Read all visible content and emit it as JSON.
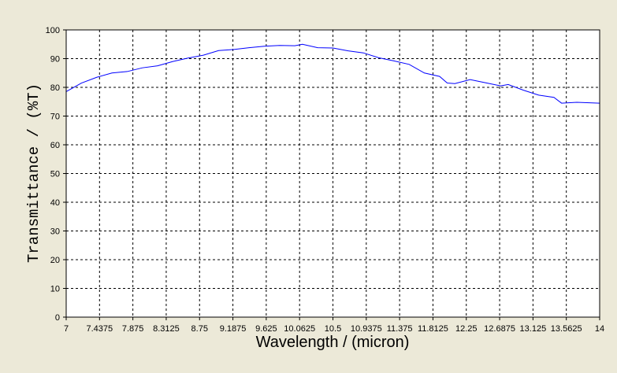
{
  "chart_data": {
    "type": "line",
    "x_label": "Wavelength / (micron)",
    "y_label": "Transmittance / (%T)",
    "x": [
      7,
      7.2,
      7.4,
      7.6,
      7.8,
      8.0,
      8.2,
      8.4,
      8.6,
      8.8,
      9.0,
      9.2,
      9.4,
      9.6,
      9.8,
      10.0,
      10.1,
      10.3,
      10.5,
      10.7,
      10.9,
      11.1,
      11.3,
      11.5,
      11.7,
      11.9,
      12.0,
      12.1,
      12.3,
      12.5,
      12.7,
      12.8,
      13.0,
      13.2,
      13.4,
      13.5,
      13.7,
      13.9,
      14
    ],
    "series": [
      {
        "color": "#0000ff",
        "values": [
          78.5,
          81.5,
          83.5,
          85,
          85.5,
          86.8,
          87.5,
          89,
          90.2,
          91.2,
          92.8,
          93.2,
          93.8,
          94.3,
          94.6,
          94.5,
          95,
          93.8,
          93.7,
          92.7,
          92,
          90.3,
          89.2,
          88,
          85,
          83.8,
          81.5,
          81.3,
          82.7,
          81.6,
          80.5,
          81,
          79,
          77.3,
          76.5,
          74.5,
          74.8,
          74.6,
          74.5
        ]
      }
    ],
    "xlim": [
      7,
      14
    ],
    "xticks": [
      7,
      7.4375,
      7.875,
      8.3125,
      8.75,
      9.1875,
      9.625,
      10.0625,
      10.5,
      10.9375,
      11.375,
      11.8125,
      12.25,
      12.6875,
      13.125,
      13.5625,
      14
    ],
    "ylim": [
      0,
      100
    ],
    "yticks": [
      0,
      10,
      20,
      30,
      40,
      50,
      60,
      70,
      80,
      90,
      100
    ],
    "grid": true
  }
}
